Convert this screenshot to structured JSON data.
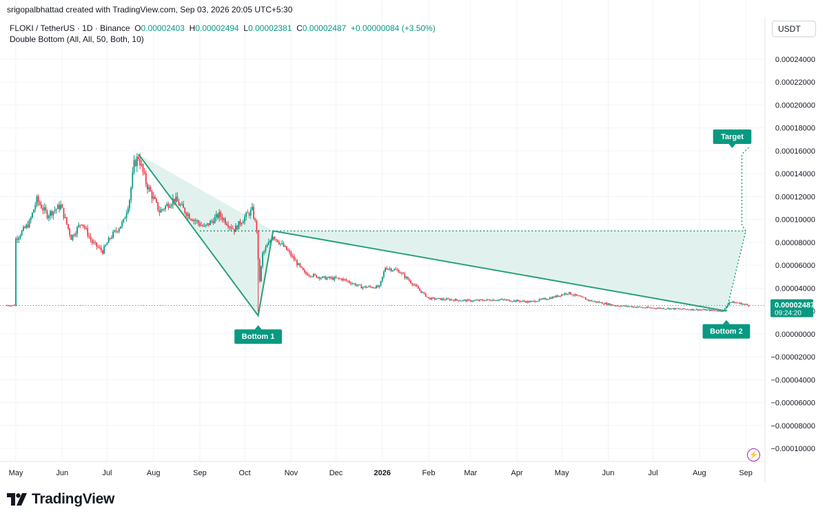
{
  "header": {
    "credit": "srigopalbhattad created with TradingView.com, Sep 03, 2026 20:05 UTC+5:30"
  },
  "legend": {
    "symbol": "FLOKI / TetherUS · 1D · Binance",
    "o_label": "O",
    "o_value": "0.00002403",
    "h_label": "H",
    "h_value": "0.00002494",
    "l_label": "L",
    "l_value": "0.00002381",
    "c_label": "C",
    "c_value": "0.00002487",
    "change": "+0.00000084 (+3.50%)",
    "indicator": "Double Bottom (All, All, 50, Both, 10)"
  },
  "currency": "USDT",
  "brand": {
    "name": "TradingView"
  },
  "colors": {
    "up": "#089981",
    "down": "#f23645",
    "pattern": "#26a17b",
    "fill": "#d9efea",
    "label_bg": "#089981",
    "bolt": "#9c27b0"
  },
  "chart_data": {
    "type": "candlestick",
    "symbol": "FLOKI/USDT",
    "interval": "1D",
    "ylim": [
      -0.0001,
      0.00024
    ],
    "y_ticks": [
      "0.00024000",
      "0.00022000",
      "0.00020000",
      "0.00018000",
      "0.00016000",
      "0.00014000",
      "0.00012000",
      "0.00010000",
      "0.00008000",
      "0.00006000",
      "0.00004000",
      "0.00002000",
      "0.00000000",
      "−0.00002000",
      "−0.00004000",
      "−0.00006000",
      "−0.00008000",
      "−0.00010000"
    ],
    "x_ticks": [
      "May",
      "Jun",
      "Jul",
      "Aug",
      "Sep",
      "Oct",
      "Nov",
      "Dec",
      "2026",
      "Feb",
      "Mar",
      "Apr",
      "May",
      "Jun",
      "Jul",
      "Aug",
      "Sep"
    ],
    "current_price": "0.00002487",
    "countdown": "09:24:20",
    "price_path": [
      [
        "2025-05-01",
        8.3e-05
      ],
      [
        "2025-05-10",
        9.7e-05
      ],
      [
        "2025-05-15",
        0.000117
      ],
      [
        "2025-05-22",
        0.000104
      ],
      [
        "2025-05-31",
        0.000112
      ],
      [
        "2025-06-07",
        8.4e-05
      ],
      [
        "2025-06-14",
        9.8e-05
      ],
      [
        "2025-06-21",
        8e-05
      ],
      [
        "2025-06-28",
        7.2e-05
      ],
      [
        "2025-07-03",
        8.4e-05
      ],
      [
        "2025-07-12",
        9.8e-05
      ],
      [
        "2025-07-16",
        0.000118
      ],
      [
        "2025-07-19",
        0.000148
      ],
      [
        "2025-07-22",
        0.000155
      ],
      [
        "2025-07-27",
        0.000132
      ],
      [
        "2025-08-05",
        0.000107
      ],
      [
        "2025-08-15",
        0.000118
      ],
      [
        "2025-08-25",
        0.000103
      ],
      [
        "2025-09-04",
        9.3e-05
      ],
      [
        "2025-09-14",
        0.000104
      ],
      [
        "2025-09-24",
        9.1e-05
      ],
      [
        "2025-10-01",
        0.000102
      ],
      [
        "2025-10-06",
        0.000108
      ],
      [
        "2025-10-09",
        9.2e-05
      ],
      [
        "2025-10-10",
        3.5e-05
      ],
      [
        "2025-10-13",
        7e-05
      ],
      [
        "2025-10-20",
        8.6e-05
      ],
      [
        "2025-10-30",
        7.2e-05
      ],
      [
        "2025-11-10",
        5.3e-05
      ],
      [
        "2025-11-22",
        4.9e-05
      ],
      [
        "2025-12-05",
        4.8e-05
      ],
      [
        "2025-12-18",
        4.1e-05
      ],
      [
        "2025-12-30",
        4.1e-05
      ],
      [
        "2026-01-03",
        5.8e-05
      ],
      [
        "2026-01-12",
        5.5e-05
      ],
      [
        "2026-01-22",
        4.3e-05
      ],
      [
        "2026-02-01",
        3.1e-05
      ],
      [
        "2026-02-15",
        3e-05
      ],
      [
        "2026-03-01",
        2.9e-05
      ],
      [
        "2026-03-20",
        3e-05
      ],
      [
        "2026-04-10",
        2.8e-05
      ],
      [
        "2026-04-25",
        3.2e-05
      ],
      [
        "2026-05-05",
        3.6e-05
      ],
      [
        "2026-05-20",
        2.9e-05
      ],
      [
        "2026-06-05",
        2.5e-05
      ],
      [
        "2026-06-25",
        2.3e-05
      ],
      [
        "2026-07-15",
        2.2e-05
      ],
      [
        "2026-08-05",
        2.1e-05
      ],
      [
        "2026-08-17",
        2e-05
      ],
      [
        "2026-08-21",
        2.8e-05
      ],
      [
        "2026-08-27",
        2.7e-05
      ],
      [
        "2026-09-03",
        2.5e-05
      ]
    ],
    "pattern": {
      "name": "Double Bottom",
      "points": [
        {
          "date": "2025-07-22",
          "price": 0.000157
        },
        {
          "date": "2025-10-10",
          "price": 1.6e-05
        },
        {
          "date": "2025-10-20",
          "price": 9e-05
        },
        {
          "date": "2026-08-19",
          "price": 2e-05
        }
      ],
      "neckline": 9e-05,
      "breakout": {
        "date": "2026-09-01",
        "price": 9e-05
      },
      "target": {
        "date": "2026-09-03",
        "price": 0.000163
      },
      "labels": {
        "bottom1": "Bottom 1",
        "bottom2": "Bottom 2",
        "target": "Target"
      }
    }
  }
}
